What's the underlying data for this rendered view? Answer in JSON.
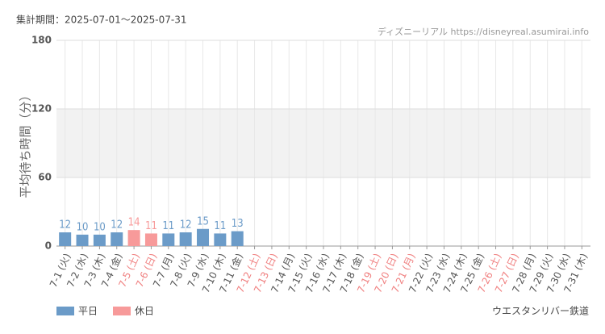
{
  "chart_data": {
    "type": "bar",
    "period": "集計期間：2025-07-01～2025-07-31",
    "source": "ディズニーリアル https://disneyreal.asumirai.info",
    "y_label": "平均待ち時間（分）",
    "attraction": "ウエスタンリバー鉄道",
    "categories": [
      "7-1 (火)",
      "7-2 (水)",
      "7-3 (木)",
      "7-4 (金)",
      "7-5 (土)",
      "7-6 (日)",
      "7-7 (月)",
      "7-8 (火)",
      "7-9 (水)",
      "7-10 (木)",
      "7-11 (金)",
      "7-12 (土)",
      "7-13 (日)",
      "7-14 (月)",
      "7-15 (火)",
      "7-16 (水)",
      "7-17 (木)",
      "7-18 (金)",
      "7-19 (土)",
      "7-20 (日)",
      "7-21 (月)",
      "7-22 (火)",
      "7-23 (水)",
      "7-24 (木)",
      "7-25 (金)",
      "7-26 (土)",
      "7-27 (日)",
      "7-28 (月)",
      "7-29 (火)",
      "7-30 (水)",
      "7-31 (木)"
    ],
    "category_label_colors": [
      "#555",
      "#555",
      "#555",
      "#555",
      "#f08080",
      "#f08080",
      "#555",
      "#555",
      "#555",
      "#555",
      "#555",
      "#f08080",
      "#f08080",
      "#555",
      "#555",
      "#555",
      "#555",
      "#555",
      "#f08080",
      "#f08080",
      "#f08080",
      "#555",
      "#555",
      "#555",
      "#555",
      "#f08080",
      "#f08080",
      "#555",
      "#555",
      "#555",
      "#555"
    ],
    "series": [
      {
        "name": "平日",
        "color": "#6b9bc8",
        "values": [
          12,
          10,
          10,
          12,
          null,
          null,
          11,
          12,
          15,
          11,
          13,
          null,
          null,
          null,
          null,
          null,
          null,
          null,
          null,
          null,
          null,
          null,
          null,
          null,
          null,
          null,
          null,
          null,
          null,
          null,
          null
        ]
      },
      {
        "name": "休日",
        "color": "#f79a9a",
        "values": [
          null,
          null,
          null,
          null,
          14,
          11,
          null,
          null,
          null,
          null,
          null,
          null,
          null,
          null,
          null,
          null,
          null,
          null,
          null,
          null,
          null,
          null,
          null,
          null,
          null,
          null,
          null,
          null,
          null,
          null,
          null
        ]
      }
    ],
    "ylim": [
      0,
      180
    ],
    "yticks": [
      0,
      60,
      120,
      180
    ],
    "plot_band": [
      60,
      120
    ],
    "grid": true
  }
}
